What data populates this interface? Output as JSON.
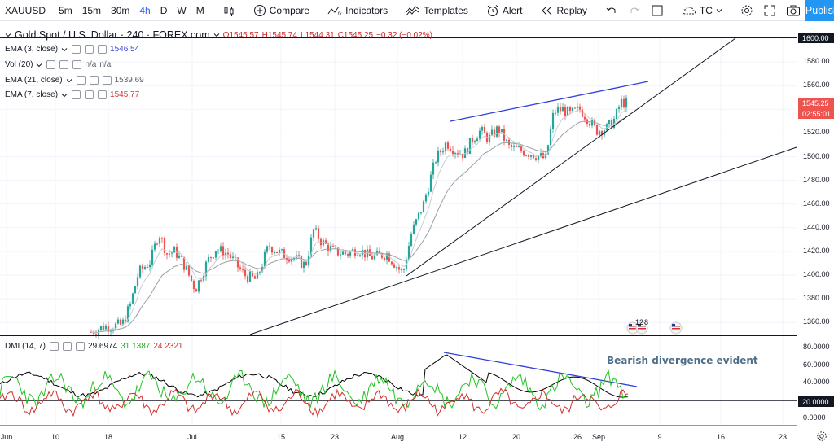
{
  "toolbar": {
    "symbol": "XAUUSD",
    "intervals": [
      {
        "label": "5m",
        "active": false
      },
      {
        "label": "15m",
        "active": false
      },
      {
        "label": "30m",
        "active": false
      },
      {
        "label": "4h",
        "active": true
      },
      {
        "label": "D",
        "active": false
      },
      {
        "label": "W",
        "active": false
      },
      {
        "label": "M",
        "active": false
      }
    ],
    "compare_label": "Compare",
    "indicators_label": "Indicators",
    "templates_label": "Templates",
    "alert_label": "Alert",
    "replay_label": "Replay",
    "layout_label": "TC",
    "publish_label": "Publish"
  },
  "legend": {
    "title": "Gold Spot / U.S. Dollar · 240 · FOREX.com",
    "open": "O1545.57",
    "high": "H1545.74",
    "low": "L1544.31",
    "close": "C1545.25",
    "change": "−0.32 (−0.02%)",
    "ema3_label": "EMA (3, close)",
    "ema3_value": "1546.54",
    "vol_label": "Vol (20)",
    "vol_value1": "n/a",
    "vol_value2": "n/a",
    "ema21_label": "EMA (21, close)",
    "ema21_value": "1539.69",
    "ema7_label": "EMA (7, close)",
    "ema7_value": "1545.77",
    "dmi_label": "DMI (14, 7)",
    "dmi_adx": "29.6974",
    "dmi_plus": "31.1387",
    "dmi_minus": "24.2321"
  },
  "price_axis": {
    "ticks": [
      "1600.00",
      "1580.00",
      "1560.00",
      "1540.00",
      "1520.00",
      "1500.00",
      "1480.00",
      "1460.00",
      "1440.00",
      "1420.00",
      "1400.00",
      "1380.00",
      "1360.00"
    ],
    "last_price": "1545.25",
    "countdown": "02:55:01"
  },
  "dmi_axis": {
    "ticks": [
      "80.0000",
      "60.0000",
      "40.0000",
      "20.0000",
      "0.0000"
    ]
  },
  "time_axis": {
    "labels": [
      "Jun",
      "10",
      "18",
      "Jul",
      "15",
      "23",
      "Aug",
      "12",
      "20",
      "26",
      "Sep",
      "9",
      "16",
      "23"
    ]
  },
  "events": {
    "count1": "12",
    "count2": "8"
  },
  "annotation": "Bearish divergence evident",
  "colors": {
    "up": "#26a69a",
    "down": "#ef5350",
    "trendline_blue": "#2f3fd8",
    "adx": "#000000",
    "di_plus": "#22c322",
    "di_minus": "#d32f2f",
    "publish": "#2196f3"
  }
}
